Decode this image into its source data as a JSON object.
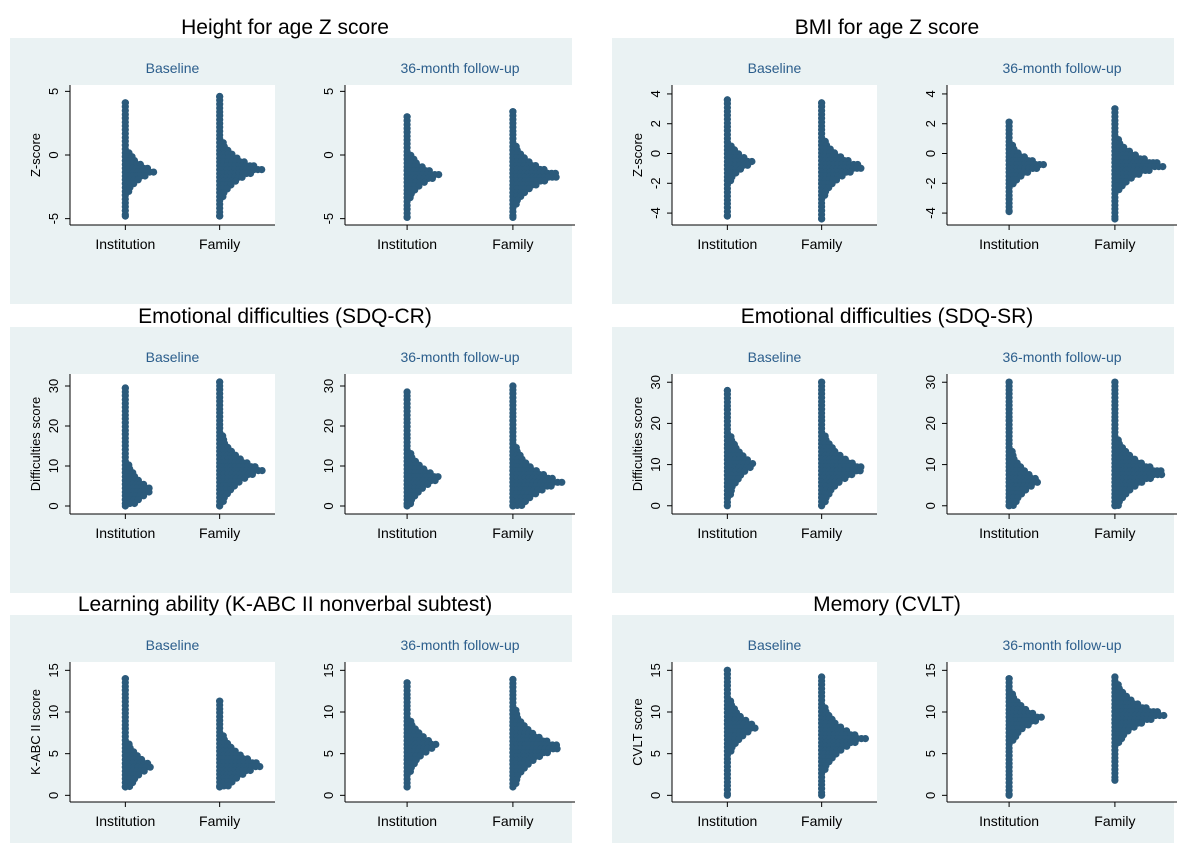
{
  "colors": {
    "panel_bg": "#eaf2f3",
    "dot": "#2b5a7b",
    "plot_bg": "#ffffff",
    "subtitle": "#2c5e8c",
    "axis": "#000000"
  },
  "chart_data": [
    {
      "type": "scatter",
      "title": "Height for age Z score",
      "ylabel": "Z-score",
      "ylim": [
        -5.5,
        5.5
      ],
      "yticks": [
        -5,
        0,
        5
      ],
      "ytick_labels": [
        "-5",
        "0",
        "5"
      ],
      "subplots": [
        {
          "subtitle": "Baseline",
          "categories": [
            "Institution",
            "Family"
          ],
          "groups": [
            {
              "min": -4.8,
              "max": 4.1,
              "mode": -1.3,
              "spread": 2.3,
              "width": 0.6
            },
            {
              "min": -4.8,
              "max": 4.6,
              "mode": -1.1,
              "spread": 2.6,
              "width": 0.85
            }
          ]
        },
        {
          "subtitle": "36-month follow-up",
          "categories": [
            "Institution",
            "Family"
          ],
          "groups": [
            {
              "min": -4.9,
              "max": 3.0,
              "mode": -1.6,
              "spread": 2.3,
              "width": 0.6
            },
            {
              "min": -4.9,
              "max": 3.4,
              "mode": -1.6,
              "spread": 2.6,
              "width": 0.85
            }
          ]
        }
      ]
    },
    {
      "type": "scatter",
      "title": "BMI for age Z score",
      "ylabel": "Z-score",
      "ylim": [
        -4.8,
        4.6
      ],
      "yticks": [
        -4,
        -2,
        0,
        2,
        4
      ],
      "ytick_labels": [
        "-4",
        "-2",
        "0",
        "2",
        "4"
      ],
      "subplots": [
        {
          "subtitle": "Baseline",
          "categories": [
            "Institution",
            "Family"
          ],
          "groups": [
            {
              "min": -4.2,
              "max": 3.6,
              "mode": -0.6,
              "spread": 1.9,
              "width": 0.55
            },
            {
              "min": -4.4,
              "max": 3.4,
              "mode": -0.9,
              "spread": 2.2,
              "width": 0.85
            }
          ]
        },
        {
          "subtitle": "36-month follow-up",
          "categories": [
            "Institution",
            "Family"
          ],
          "groups": [
            {
              "min": -3.9,
              "max": 2.1,
              "mode": -0.8,
              "spread": 1.8,
              "width": 0.65
            },
            {
              "min": -4.4,
              "max": 3.0,
              "mode": -0.8,
              "spread": 2.0,
              "width": 0.9
            }
          ]
        }
      ]
    },
    {
      "type": "scatter",
      "title": "Emotional difficulties (SDQ-CR)",
      "ylabel": "Difficulties score",
      "ylim": [
        -2,
        33
      ],
      "yticks": [
        0,
        10,
        20,
        30
      ],
      "ytick_labels": [
        "0",
        "10",
        "20",
        "30"
      ],
      "subplots": [
        {
          "subtitle": "Baseline",
          "categories": [
            "Institution",
            "Family"
          ],
          "groups": [
            {
              "min": 0,
              "max": 29.5,
              "mode": 4,
              "spread": 10,
              "width": 0.55
            },
            {
              "min": 0,
              "max": 31,
              "mode": 9,
              "spread": 10,
              "width": 0.85
            }
          ]
        },
        {
          "subtitle": "36-month follow-up",
          "categories": [
            "Institution",
            "Family"
          ],
          "groups": [
            {
              "min": 0,
              "max": 28.5,
              "mode": 7,
              "spread": 9,
              "width": 0.6
            },
            {
              "min": 0,
              "max": 30,
              "mode": 6,
              "spread": 10,
              "width": 0.85
            }
          ]
        }
      ]
    },
    {
      "type": "scatter",
      "title": "Emotional difficulties (SDQ-SR)",
      "ylabel": "Difficulties score",
      "ylim": [
        -2,
        32
      ],
      "yticks": [
        0,
        10,
        20,
        30
      ],
      "ytick_labels": [
        "0",
        "10",
        "20",
        "30"
      ],
      "subplots": [
        {
          "subtitle": "Baseline",
          "categories": [
            "Institution",
            "Family"
          ],
          "groups": [
            {
              "min": 0,
              "max": 28,
              "mode": 10,
              "spread": 11,
              "width": 0.55
            },
            {
              "min": 0,
              "max": 30,
              "mode": 9,
              "spread": 10,
              "width": 0.85
            }
          ]
        },
        {
          "subtitle": "36-month follow-up",
          "categories": [
            "Institution",
            "Family"
          ],
          "groups": [
            {
              "min": 0,
              "max": 30,
              "mode": 6,
              "spread": 10,
              "width": 0.55
            },
            {
              "min": 0,
              "max": 30,
              "mode": 8,
              "spread": 9,
              "width": 0.9
            }
          ]
        }
      ]
    },
    {
      "type": "scatter",
      "title": "Learning ability (K-ABC II nonverbal subtest)",
      "ylabel": "K-ABC II score",
      "ylim": [
        -0.8,
        16
      ],
      "yticks": [
        0,
        5,
        10,
        15
      ],
      "ytick_labels": [
        "0",
        "5",
        "10",
        "15"
      ],
      "subplots": [
        {
          "subtitle": "Baseline",
          "categories": [
            "Institution",
            "Family"
          ],
          "groups": [
            {
              "min": 1,
              "max": 14,
              "mode": 3.5,
              "spread": 4.5,
              "width": 0.55
            },
            {
              "min": 1,
              "max": 11.3,
              "mode": 3.6,
              "spread": 4.5,
              "width": 0.85
            }
          ]
        },
        {
          "subtitle": "36-month follow-up",
          "categories": [
            "Institution",
            "Family"
          ],
          "groups": [
            {
              "min": 1,
              "max": 13.5,
              "mode": 6,
              "spread": 4.5,
              "width": 0.55
            },
            {
              "min": 1,
              "max": 13.9,
              "mode": 5.8,
              "spread": 4.8,
              "width": 0.85
            }
          ]
        }
      ]
    },
    {
      "type": "scatter",
      "title": "Memory (CVLT)",
      "ylabel": "CVLT score",
      "ylim": [
        -0.8,
        16
      ],
      "yticks": [
        0,
        5,
        10,
        15
      ],
      "ytick_labels": [
        "0",
        "5",
        "10",
        "15"
      ],
      "subplots": [
        {
          "subtitle": "Baseline",
          "categories": [
            "Institution",
            "Family"
          ],
          "groups": [
            {
              "min": 0,
              "max": 15,
              "mode": 8.2,
              "spread": 4.5,
              "width": 0.6
            },
            {
              "min": 0,
              "max": 14.2,
              "mode": 6.8,
              "spread": 4.5,
              "width": 0.85
            }
          ]
        },
        {
          "subtitle": "36-month follow-up",
          "categories": [
            "Institution",
            "Family"
          ],
          "groups": [
            {
              "min": 0,
              "max": 14,
              "mode": 9.3,
              "spread": 4,
              "width": 0.6
            },
            {
              "min": 1.8,
              "max": 14.2,
              "mode": 9.7,
              "spread": 4,
              "width": 0.9
            }
          ]
        }
      ]
    }
  ]
}
